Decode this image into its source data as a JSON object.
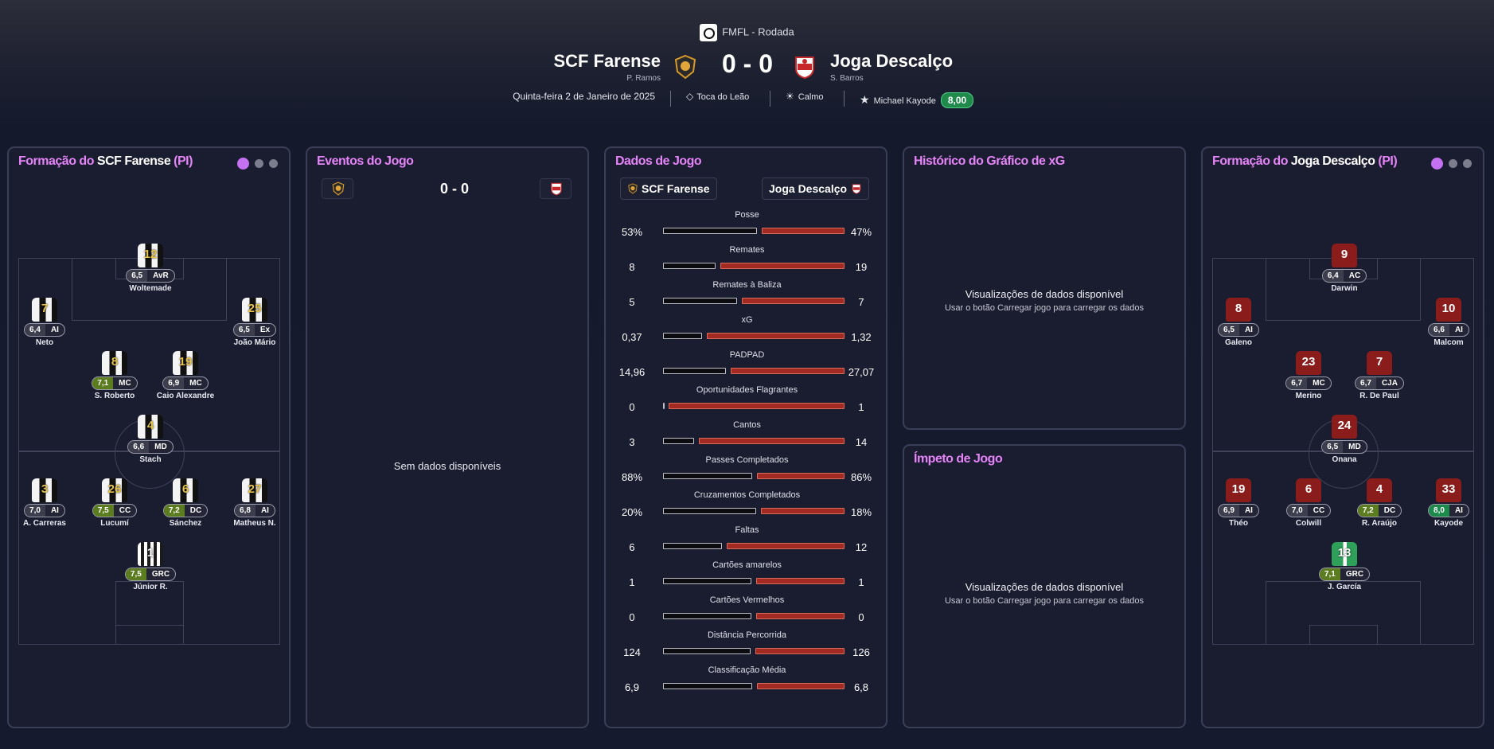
{
  "header": {
    "competition": "FMFL - Rodada",
    "home": {
      "name": "SCF Farense",
      "manager": "P. Ramos"
    },
    "away": {
      "name": "Joga Descalço",
      "manager": "S. Barros"
    },
    "score": "0 - 0",
    "date": "Quinta-feira 2 de Janeiro de 2025",
    "stadium": "Toca do Leão",
    "weather": "Calmo",
    "potm_name": "Michael Kayode",
    "potm_rating": "8,00"
  },
  "home_formation": {
    "title_prefix": "Formação do ",
    "team": "SCF Farense",
    "suffix": " (PI)",
    "players": [
      {
        "num": "12",
        "rating": "6,5",
        "pos": "AvR",
        "name": "Woltemade",
        "rclass": ""
      },
      {
        "num": "7",
        "rating": "6,4",
        "pos": "AI",
        "name": "Neto",
        "rclass": ""
      },
      {
        "num": "25",
        "rating": "6,5",
        "pos": "Ex",
        "name": "João Mário",
        "rclass": ""
      },
      {
        "num": "8",
        "rating": "7,1",
        "pos": "MC",
        "name": "S. Roberto",
        "rclass": "g"
      },
      {
        "num": "19",
        "rating": "6,9",
        "pos": "MC",
        "name": "Caio Alexandre",
        "rclass": ""
      },
      {
        "num": "4",
        "rating": "6,6",
        "pos": "MD",
        "name": "Stach",
        "rclass": ""
      },
      {
        "num": "3",
        "rating": "7,0",
        "pos": "AI",
        "name": "A. Carreras",
        "rclass": ""
      },
      {
        "num": "26",
        "rating": "7,5",
        "pos": "CC",
        "name": "Lucumí",
        "rclass": "g"
      },
      {
        "num": "6",
        "rating": "7,2",
        "pos": "DC",
        "name": "Sánchez",
        "rclass": "g"
      },
      {
        "num": "27",
        "rating": "6,8",
        "pos": "AI",
        "name": "Matheus N.",
        "rclass": ""
      },
      {
        "num": "1",
        "rating": "7,5",
        "pos": "GRC",
        "name": "Júnior R.",
        "rclass": "g"
      }
    ]
  },
  "events": {
    "title": "Eventos do Jogo",
    "score": "0 - 0",
    "empty": "Sem dados disponíveis"
  },
  "stats": {
    "title": "Dados de Jogo",
    "home": "SCF Farense",
    "away": "Joga Descalço",
    "rows": [
      {
        "label": "Posse",
        "home": "53%",
        "away": "47%",
        "h": 53,
        "a": 47
      },
      {
        "label": "Remates",
        "home": "8",
        "away": "19",
        "h": 8,
        "a": 19
      },
      {
        "label": "Remates à Baliza",
        "home": "5",
        "away": "7",
        "h": 5,
        "a": 7
      },
      {
        "label": "xG",
        "home": "0,37",
        "away": "1,32",
        "h": 0.37,
        "a": 1.32
      },
      {
        "label": "PADPAD",
        "home": "14,96",
        "away": "27,07",
        "h": 14.96,
        "a": 27.07
      },
      {
        "label": "Oportunidades Flagrantes",
        "home": "0",
        "away": "1",
        "h": 0,
        "a": 1
      },
      {
        "label": "Cantos",
        "home": "3",
        "away": "14",
        "h": 3,
        "a": 14
      },
      {
        "label": "Passes Completados",
        "home": "88%",
        "away": "86%",
        "h": 88,
        "a": 86
      },
      {
        "label": "Cruzamentos Completados",
        "home": "20%",
        "away": "18%",
        "h": 20,
        "a": 18
      },
      {
        "label": "Faltas",
        "home": "6",
        "away": "12",
        "h": 6,
        "a": 12
      },
      {
        "label": "Cartões amarelos",
        "home": "1",
        "away": "1",
        "h": 1,
        "a": 1
      },
      {
        "label": "Cartões Vermelhos",
        "home": "0",
        "away": "0",
        "h": 0,
        "a": 0
      },
      {
        "label": "Distância Percorrida",
        "home": "124",
        "away": "126",
        "h": 124,
        "a": 126
      },
      {
        "label": "Classificação Média",
        "home": "6,9",
        "away": "6,8",
        "h": 6.9,
        "a": 6.8
      }
    ]
  },
  "xg_history": {
    "title": "Histórico do Gráfico de xG",
    "msg": "Visualizações de dados disponível",
    "sub": "Usar o botão Carregar jogo para carregar os dados"
  },
  "momentum": {
    "title": "Ímpeto de Jogo",
    "msg": "Visualizações de dados disponível",
    "sub": "Usar o botão Carregar jogo para carregar os dados"
  },
  "away_formation": {
    "title_prefix": "Formação do ",
    "team": "Joga Descalço",
    "suffix": " (PI)",
    "players": [
      {
        "num": "9",
        "rating": "6,4",
        "pos": "AC",
        "name": "Darwin",
        "rclass": ""
      },
      {
        "num": "8",
        "rating": "6,5",
        "pos": "AI",
        "name": "Galeno",
        "rclass": ""
      },
      {
        "num": "10",
        "rating": "6,6",
        "pos": "AI",
        "name": "Malcom",
        "rclass": ""
      },
      {
        "num": "23",
        "rating": "6,7",
        "pos": "MC",
        "name": "Merino",
        "rclass": ""
      },
      {
        "num": "7",
        "rating": "6,7",
        "pos": "CJA",
        "name": "R. De Paul",
        "rclass": ""
      },
      {
        "num": "24",
        "rating": "6,5",
        "pos": "MD",
        "name": "Onana",
        "rclass": ""
      },
      {
        "num": "19",
        "rating": "6,9",
        "pos": "AI",
        "name": "Théo",
        "rclass": ""
      },
      {
        "num": "6",
        "rating": "7,0",
        "pos": "CC",
        "name": "Colwill",
        "rclass": ""
      },
      {
        "num": "4",
        "rating": "7,2",
        "pos": "DC",
        "name": "R. Araújo",
        "rclass": "g"
      },
      {
        "num": "33",
        "rating": "8,0",
        "pos": "AI",
        "name": "Kayode",
        "rclass": "hg"
      },
      {
        "num": "13",
        "rating": "7,1",
        "pos": "GRC",
        "name": "J. García",
        "rclass": "g"
      }
    ]
  }
}
